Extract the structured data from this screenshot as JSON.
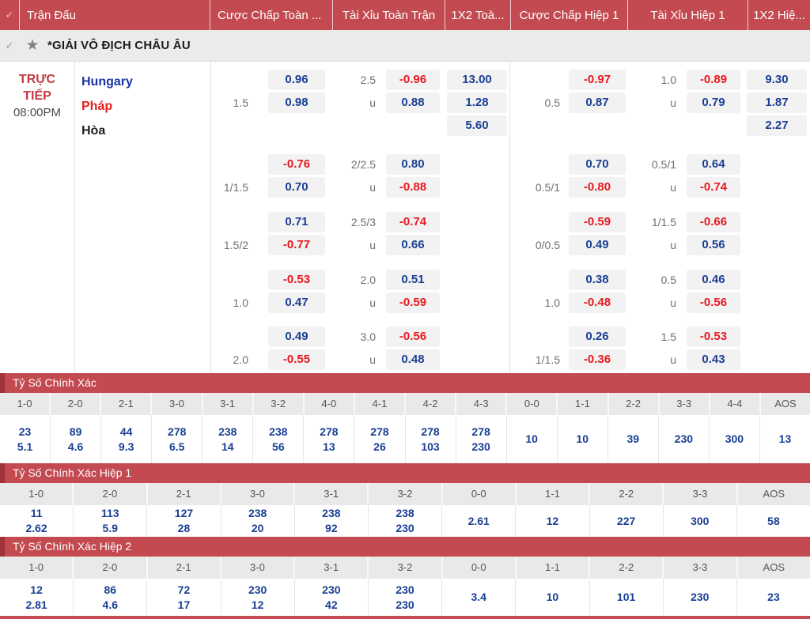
{
  "colors": {
    "accent_red": "#c24a50",
    "accent_red_dark": "#9e333b",
    "odds_positive": "#1a3f94",
    "odds_negative": "#e8191f"
  },
  "header": {
    "check_icon": "✓",
    "columns": [
      "Trận Đấu",
      "Cược Chấp Toàn ...",
      "Tài Xỉu Toàn Trận",
      "1X2 Toà...",
      "Cược Chấp Hiệp 1",
      "Tài Xỉu Hiệp 1",
      "1X2 Hiệ..."
    ]
  },
  "league": {
    "check_icon": "✓",
    "star_icon": "★",
    "name": "*GIẢI VÔ ĐỊCH CHÂU ÂU"
  },
  "match": {
    "status": [
      "TRỰC",
      "TIẾP"
    ],
    "time": "08:00PM",
    "teams": [
      {
        "name": "Hungary",
        "color": "#1a35a6"
      },
      {
        "name": "Pháp",
        "color": "#ea1c1f"
      },
      {
        "name": "Hòa",
        "color": "#1f1f1f"
      }
    ]
  },
  "odds_blocks": [
    {
      "rows": [
        {
          "ft_hc_line": "",
          "ft_hc": "0.96",
          "ft_ou_line": "2.5",
          "ft_ou": "-0.96",
          "ft_1x2": "13.00",
          "h1_hc_line": "",
          "h1_hc": "-0.97",
          "h1_ou_line": "1.0",
          "h1_ou": "-0.89",
          "h1_1x2": "9.30"
        },
        {
          "ft_hc_line": "1.5",
          "ft_hc": "0.98",
          "ft_ou_line": "u",
          "ft_ou": "0.88",
          "ft_1x2": "1.28",
          "h1_hc_line": "0.5",
          "h1_hc": "0.87",
          "h1_ou_line": "u",
          "h1_ou": "0.79",
          "h1_1x2": "1.87"
        },
        {
          "ft_1x2": "5.60",
          "h1_1x2": "2.27"
        }
      ]
    },
    {
      "rows": [
        {
          "ft_hc_line": "",
          "ft_hc": "-0.76",
          "ft_ou_line": "2/2.5",
          "ft_ou": "0.80",
          "h1_hc_line": "",
          "h1_hc": "0.70",
          "h1_ou_line": "0.5/1",
          "h1_ou": "0.64"
        },
        {
          "ft_hc_line": "1/1.5",
          "ft_hc": "0.70",
          "ft_ou_line": "u",
          "ft_ou": "-0.88",
          "h1_hc_line": "0.5/1",
          "h1_hc": "-0.80",
          "h1_ou_line": "u",
          "h1_ou": "-0.74"
        }
      ]
    },
    {
      "rows": [
        {
          "ft_hc_line": "",
          "ft_hc": "0.71",
          "ft_ou_line": "2.5/3",
          "ft_ou": "-0.74",
          "h1_hc_line": "",
          "h1_hc": "-0.59",
          "h1_ou_line": "1/1.5",
          "h1_ou": "-0.66"
        },
        {
          "ft_hc_line": "1.5/2",
          "ft_hc": "-0.77",
          "ft_ou_line": "u",
          "ft_ou": "0.66",
          "h1_hc_line": "0/0.5",
          "h1_hc": "0.49",
          "h1_ou_line": "u",
          "h1_ou": "0.56"
        }
      ]
    },
    {
      "rows": [
        {
          "ft_hc_line": "",
          "ft_hc": "-0.53",
          "ft_ou_line": "2.0",
          "ft_ou": "0.51",
          "h1_hc_line": "",
          "h1_hc": "0.38",
          "h1_ou_line": "0.5",
          "h1_ou": "0.46"
        },
        {
          "ft_hc_line": "1.0",
          "ft_hc": "0.47",
          "ft_ou_line": "u",
          "ft_ou": "-0.59",
          "h1_hc_line": "1.0",
          "h1_hc": "-0.48",
          "h1_ou_line": "u",
          "h1_ou": "-0.56"
        }
      ]
    },
    {
      "rows": [
        {
          "ft_hc_line": "",
          "ft_hc": "0.49",
          "ft_ou_line": "3.0",
          "ft_ou": "-0.56",
          "h1_hc_line": "",
          "h1_hc": "0.26",
          "h1_ou_line": "1.5",
          "h1_ou": "-0.53"
        },
        {
          "ft_hc_line": "2.0",
          "ft_hc": "-0.55",
          "ft_ou_line": "u",
          "ft_ou": "0.48",
          "h1_hc_line": "1/1.5",
          "h1_hc": "-0.36",
          "h1_ou_line": "u",
          "h1_ou": "0.43"
        }
      ]
    }
  ],
  "score_sections": [
    {
      "title": "Tỷ Số Chính Xác",
      "columns": [
        {
          "score": "1-0",
          "values": [
            "23",
            "5.1"
          ]
        },
        {
          "score": "2-0",
          "values": [
            "89",
            "4.6"
          ]
        },
        {
          "score": "2-1",
          "values": [
            "44",
            "9.3"
          ]
        },
        {
          "score": "3-0",
          "values": [
            "278",
            "6.5"
          ]
        },
        {
          "score": "3-1",
          "values": [
            "238",
            "14"
          ]
        },
        {
          "score": "3-2",
          "values": [
            "238",
            "56"
          ]
        },
        {
          "score": "4-0",
          "values": [
            "278",
            "13"
          ]
        },
        {
          "score": "4-1",
          "values": [
            "278",
            "26"
          ]
        },
        {
          "score": "4-2",
          "values": [
            "278",
            "103"
          ]
        },
        {
          "score": "4-3",
          "values": [
            "278",
            "230"
          ]
        },
        {
          "score": "0-0",
          "values": [
            "10"
          ]
        },
        {
          "score": "1-1",
          "values": [
            "10"
          ]
        },
        {
          "score": "2-2",
          "values": [
            "39"
          ]
        },
        {
          "score": "3-3",
          "values": [
            "230"
          ]
        },
        {
          "score": "4-4",
          "values": [
            "300"
          ]
        },
        {
          "score": "AOS",
          "values": [
            "13"
          ]
        }
      ]
    },
    {
      "title": "Tỷ Số Chính Xác Hiệp 1",
      "columns": [
        {
          "score": "1-0",
          "values": [
            "11",
            "2.62"
          ]
        },
        {
          "score": "2-0",
          "values": [
            "113",
            "5.9"
          ]
        },
        {
          "score": "2-1",
          "values": [
            "127",
            "28"
          ]
        },
        {
          "score": "3-0",
          "values": [
            "238",
            "20"
          ]
        },
        {
          "score": "3-1",
          "values": [
            "238",
            "92"
          ]
        },
        {
          "score": "3-2",
          "values": [
            "238",
            "230"
          ]
        },
        {
          "score": "0-0",
          "values": [
            "2.61"
          ]
        },
        {
          "score": "1-1",
          "values": [
            "12"
          ]
        },
        {
          "score": "2-2",
          "values": [
            "227"
          ]
        },
        {
          "score": "3-3",
          "values": [
            "300"
          ]
        },
        {
          "score": "AOS",
          "values": [
            "58"
          ]
        }
      ]
    },
    {
      "title": "Tỷ Số Chính Xác Hiệp 2",
      "columns": [
        {
          "score": "1-0",
          "values": [
            "12",
            "2.81"
          ]
        },
        {
          "score": "2-0",
          "values": [
            "86",
            "4.6"
          ]
        },
        {
          "score": "2-1",
          "values": [
            "72",
            "17"
          ]
        },
        {
          "score": "3-0",
          "values": [
            "230",
            "12"
          ]
        },
        {
          "score": "3-1",
          "values": [
            "230",
            "42"
          ]
        },
        {
          "score": "3-2",
          "values": [
            "230",
            "230"
          ]
        },
        {
          "score": "0-0",
          "values": [
            "3.4"
          ]
        },
        {
          "score": "1-1",
          "values": [
            "10"
          ]
        },
        {
          "score": "2-2",
          "values": [
            "101"
          ]
        },
        {
          "score": "3-3",
          "values": [
            "230"
          ]
        },
        {
          "score": "AOS",
          "values": [
            "23"
          ]
        }
      ]
    }
  ]
}
